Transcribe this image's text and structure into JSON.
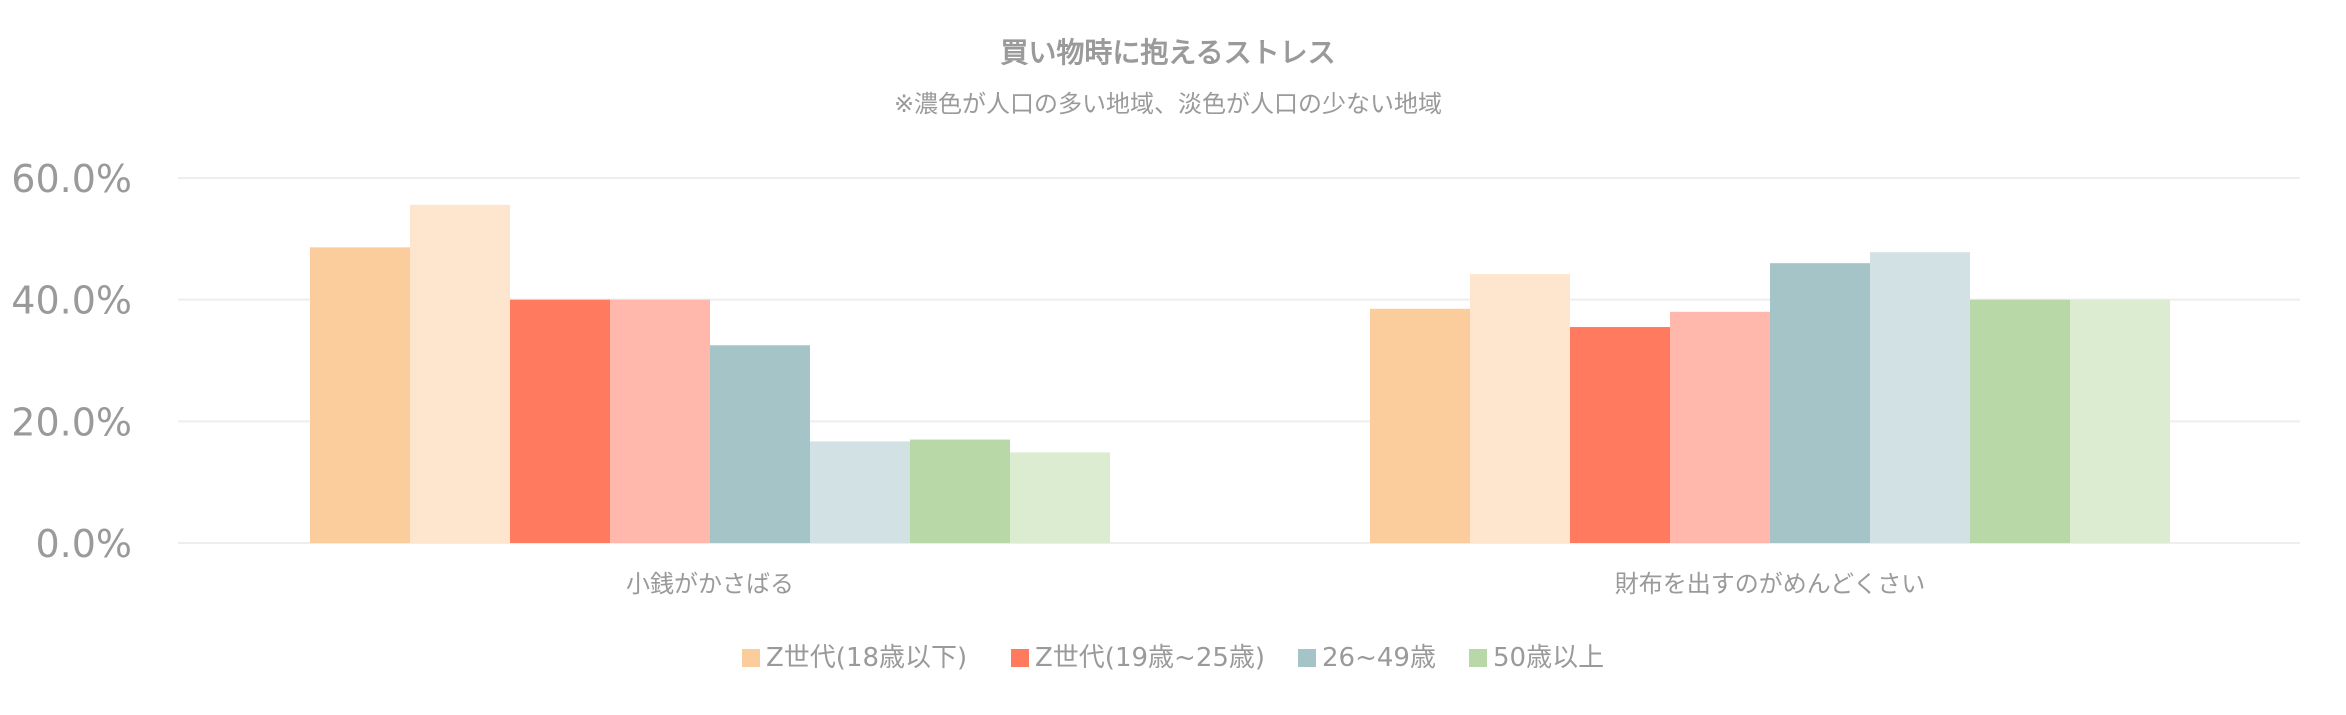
{
  "chart_data": {
    "type": "bar",
    "title": "買い物時に抱えるストレス",
    "subtitle": "※濃色が人口の多い地域、淡色が人口の少ない地域",
    "categories": [
      "小銭がかさばる",
      "財布を出すのがめんどくさい"
    ],
    "ylim": [
      0,
      60
    ],
    "yticks": [
      "0.0%",
      "20.0%",
      "40.0%",
      "60.0%"
    ],
    "ytick_values": [
      0,
      20,
      40,
      60
    ],
    "grid": true,
    "legend_position": "bottom",
    "series": [
      {
        "name": "Z世代(18歳以下)",
        "group": 0,
        "shade": "dark",
        "color": "#fbcd9d",
        "values": [
          48.6,
          38.5
        ]
      },
      {
        "name": "",
        "group": 0,
        "shade": "light",
        "color": "#fde6cd",
        "values": [
          55.6,
          44.2
        ]
      },
      {
        "name": "Z世代(19歳~25歳)",
        "group": 1,
        "shade": "dark",
        "color": "#ff7a5f",
        "values": [
          40.0,
          35.5
        ]
      },
      {
        "name": "",
        "group": 1,
        "shade": "light",
        "color": "#ffb8ab",
        "values": [
          40.0,
          38.0
        ]
      },
      {
        "name": "26~49歳",
        "group": 2,
        "shade": "dark",
        "color": "#a4c4c8",
        "values": [
          32.5,
          46.0
        ]
      },
      {
        "name": "",
        "group": 2,
        "shade": "light",
        "color": "#d1e1e4",
        "values": [
          16.7,
          47.8
        ]
      },
      {
        "name": "50歳以上",
        "group": 3,
        "shade": "dark",
        "color": "#b8d8a8",
        "values": [
          17.0,
          40.0
        ]
      },
      {
        "name": "",
        "group": 3,
        "shade": "light",
        "color": "#dbecd1",
        "values": [
          14.9,
          40.0
        ]
      }
    ],
    "legend": [
      {
        "label": "Z世代(18歳以下)",
        "color": "#fbcd9d"
      },
      {
        "label": "Z世代(19歳~25歳)",
        "color": "#ff7a5f"
      },
      {
        "label": "26~49歳",
        "color": "#a4c4c8"
      },
      {
        "label": "50歳以上",
        "color": "#b8d8a8"
      }
    ]
  }
}
